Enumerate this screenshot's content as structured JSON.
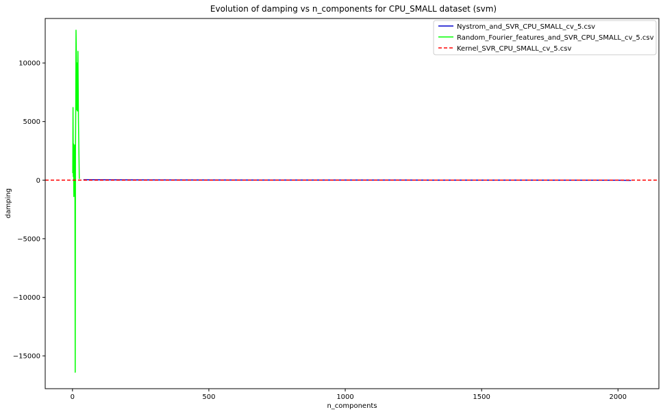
{
  "chart_data": {
    "type": "line",
    "title": "Evolution of damping vs n_components for CPU_SMALL dataset (svm)",
    "xlabel": "n_components",
    "ylabel": "damping",
    "xlim": [
      -100,
      2150
    ],
    "ylim": [
      -17800,
      13800
    ],
    "xticks": [
      0,
      500,
      1000,
      1500,
      2000
    ],
    "yticks": [
      -15000,
      -10000,
      -5000,
      0,
      5000,
      10000
    ],
    "legend_position": "top-right",
    "series": [
      {
        "name": "Nystrom_and_SVR_CPU_SMALL_cv_5.csv",
        "color": "#0000cc",
        "style": "solid",
        "x": [
          40,
          100,
          200,
          400,
          800,
          1200,
          1600,
          2000,
          2048
        ],
        "y": [
          40,
          30,
          20,
          15,
          10,
          5,
          0,
          -10,
          -20
        ]
      },
      {
        "name": "Random_Fourier_features_and_SVR_CPU_SMALL_cv_5.csv",
        "color": "#00ff00",
        "style": "solid",
        "x": [
          1,
          2,
          3,
          4,
          5,
          6,
          7,
          8,
          9,
          10,
          11,
          12,
          13,
          14,
          15,
          16,
          17,
          18,
          19,
          20,
          22,
          25
        ],
        "y": [
          600,
          6200,
          300,
          3100,
          -1400,
          1000,
          -500,
          3000,
          -600,
          -16400,
          2500,
          6000,
          12800,
          11000,
          6000,
          9000,
          10000,
          5900,
          8000,
          11000,
          5000,
          100
        ]
      },
      {
        "name": "Kernel_SVR_CPU_SMALL_cv_5.csv",
        "color": "#ff0000",
        "style": "dashed",
        "constant": 0
      }
    ]
  }
}
